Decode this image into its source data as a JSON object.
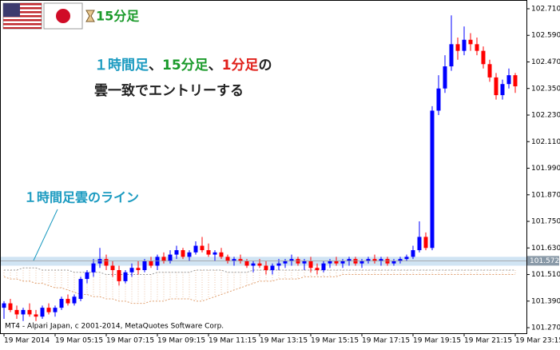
{
  "chart_data": {
    "type": "candlestick",
    "timeframe_label": "15分足",
    "annotation_main": {
      "line1": [
        {
          "text": "１時間足",
          "color": "#1a9ac0"
        },
        {
          "text": "、",
          "color": "#222222"
        },
        {
          "text": "15分足",
          "color": "#1a9a2a"
        },
        {
          "text": "、",
          "color": "#222222"
        },
        {
          "text": "1分足",
          "color": "#e0201a"
        },
        {
          "text": "の",
          "color": "#222222"
        }
      ],
      "line2": "雲一致でエントリーする"
    },
    "annotation_line": {
      "text": "１時間足雲のライン",
      "color": "#1a9ac0"
    },
    "footer": "MT4 - Alpari Japan, c 2001-2014, MetaQuotes Software Corp.",
    "categories": [
      "19 Mar 2014",
      null,
      null,
      null,
      null,
      null,
      null,
      null,
      "19 Mar 05:15",
      null,
      null,
      null,
      null,
      null,
      null,
      null,
      "19 Mar 07:15",
      null,
      null,
      null,
      null,
      null,
      null,
      null,
      "19 Mar 09:15",
      null,
      null,
      null,
      null,
      null,
      null,
      null,
      "19 Mar 11:15",
      null,
      null,
      null,
      null,
      null,
      null,
      null,
      "19 Mar 13:15",
      null,
      null,
      null,
      null,
      null,
      null,
      null,
      "19 Mar 15:15",
      null,
      null,
      null,
      null,
      null,
      null,
      null,
      "19 Mar 17:15",
      null,
      null,
      null,
      null,
      null,
      null,
      null,
      "19 Mar 19:15",
      null,
      null,
      null,
      null,
      null,
      null,
      null,
      "19 Mar 21:15",
      null,
      null,
      null,
      null,
      null,
      null,
      null,
      "19 Mar 23:15"
    ],
    "open": [
      101.36,
      101.38,
      101.35,
      101.33,
      101.35,
      101.33,
      101.32,
      101.36,
      101.34,
      101.36,
      101.4,
      101.38,
      101.4,
      101.49,
      101.52,
      101.56,
      101.58,
      101.55,
      101.53,
      101.48,
      101.52,
      101.54,
      101.53,
      101.57,
      101.55,
      101.59,
      101.57,
      101.6,
      101.62,
      101.59,
      101.61,
      101.64,
      101.62,
      101.6,
      101.61,
      101.59,
      101.57,
      101.58,
      101.57,
      101.55,
      101.56,
      101.55,
      101.53,
      101.55,
      101.56,
      101.57,
      101.58,
      101.56,
      101.57,
      101.54,
      101.53,
      101.56,
      101.57,
      101.56,
      101.57,
      101.58,
      101.56,
      101.57,
      101.58,
      101.57,
      101.58,
      101.56,
      101.57,
      101.58,
      101.59,
      101.62,
      101.68,
      101.63,
      102.25,
      102.35,
      102.45,
      102.55,
      102.52,
      102.57,
      102.55,
      102.52,
      102.46,
      102.4,
      102.32,
      102.37,
      102.41
    ],
    "high": [
      101.39,
      101.4,
      101.37,
      101.36,
      101.38,
      101.35,
      101.37,
      101.38,
      101.37,
      101.41,
      101.42,
      101.42,
      101.5,
      101.53,
      101.58,
      101.63,
      101.6,
      101.57,
      101.55,
      101.53,
      101.56,
      101.57,
      101.58,
      101.59,
      101.6,
      101.61,
      101.62,
      101.64,
      101.63,
      101.62,
      101.66,
      101.68,
      101.65,
      101.62,
      101.63,
      101.6,
      101.59,
      101.6,
      101.58,
      101.57,
      101.58,
      101.57,
      101.56,
      101.58,
      101.58,
      101.6,
      101.59,
      101.58,
      101.59,
      101.56,
      101.57,
      101.58,
      101.59,
      101.58,
      101.59,
      101.59,
      101.58,
      101.59,
      101.6,
      101.59,
      101.59,
      101.58,
      101.59,
      101.6,
      101.64,
      101.75,
      101.7,
      102.27,
      102.41,
      102.5,
      102.68,
      102.58,
      102.63,
      102.6,
      102.58,
      102.54,
      102.48,
      102.42,
      102.39,
      102.44,
      102.42
    ],
    "low": [
      101.31,
      101.34,
      101.31,
      101.3,
      101.32,
      101.3,
      101.31,
      101.33,
      101.32,
      101.35,
      101.37,
      101.37,
      101.39,
      101.47,
      101.5,
      101.54,
      101.53,
      101.5,
      101.46,
      101.47,
      101.5,
      101.51,
      101.52,
      101.54,
      101.53,
      101.56,
      101.56,
      101.58,
      101.58,
      101.57,
      101.6,
      101.61,
      101.59,
      101.57,
      101.58,
      101.56,
      101.55,
      101.56,
      101.54,
      101.52,
      101.54,
      101.51,
      101.51,
      101.53,
      101.54,
      101.55,
      101.55,
      101.53,
      101.52,
      101.51,
      101.52,
      101.54,
      101.55,
      101.54,
      101.55,
      101.55,
      101.54,
      101.56,
      101.56,
      101.55,
      101.55,
      101.55,
      101.56,
      101.57,
      101.58,
      101.61,
      101.62,
      101.62,
      102.23,
      102.33,
      102.43,
      102.48,
      102.5,
      102.52,
      102.5,
      102.44,
      102.38,
      102.3,
      102.3,
      102.35,
      102.33
    ],
    "close": [
      101.38,
      101.35,
      101.33,
      101.35,
      101.33,
      101.32,
      101.36,
      101.34,
      101.36,
      101.4,
      101.38,
      101.41,
      101.49,
      101.52,
      101.56,
      101.58,
      101.55,
      101.53,
      101.48,
      101.52,
      101.54,
      101.53,
      101.57,
      101.55,
      101.59,
      101.57,
      101.6,
      101.62,
      101.59,
      101.61,
      101.64,
      101.62,
      101.6,
      101.61,
      101.59,
      101.57,
      101.58,
      101.57,
      101.55,
      101.56,
      101.55,
      101.53,
      101.55,
      101.56,
      101.57,
      101.58,
      101.56,
      101.57,
      101.54,
      101.53,
      101.56,
      101.57,
      101.56,
      101.57,
      101.58,
      101.56,
      101.57,
      101.58,
      101.57,
      101.58,
      101.56,
      101.57,
      101.58,
      101.59,
      101.62,
      101.68,
      101.63,
      102.25,
      102.35,
      102.45,
      102.55,
      102.52,
      102.57,
      102.55,
      102.52,
      102.46,
      102.4,
      102.32,
      102.37,
      102.41,
      102.36
    ],
    "up_color": "#0000ff",
    "down_color": "#ff0000",
    "cloud_upper": [
      101.53,
      101.53,
      101.53,
      101.54,
      101.54,
      101.54,
      101.53,
      101.53,
      101.53,
      101.53,
      101.53,
      101.52,
      101.52,
      101.52,
      101.52,
      101.52,
      101.51,
      101.51,
      101.51,
      101.51,
      101.51,
      101.51,
      101.51,
      101.51,
      101.52,
      101.52,
      101.52,
      101.52,
      101.52,
      101.52,
      101.53,
      101.53,
      101.53,
      101.53,
      101.53,
      101.52,
      101.52,
      101.52,
      101.52,
      101.53,
      101.53,
      101.53,
      101.53,
      101.53,
      101.53,
      101.53,
      101.53,
      101.53,
      101.53,
      101.53,
      101.53,
      101.53,
      101.53,
      101.53,
      101.53,
      101.53,
      101.53,
      101.53,
      101.53,
      101.53,
      101.53,
      101.53,
      101.53,
      101.53,
      101.53,
      101.53,
      101.53,
      101.53,
      101.53,
      101.53,
      101.53,
      101.53,
      101.53,
      101.53,
      101.53,
      101.53,
      101.53,
      101.53,
      101.53,
      101.53,
      101.53
    ],
    "cloud_lower": [
      101.5,
      101.49,
      101.49,
      101.48,
      101.48,
      101.47,
      101.47,
      101.46,
      101.45,
      101.45,
      101.44,
      101.43,
      101.42,
      101.42,
      101.41,
      101.41,
      101.4,
      101.4,
      101.39,
      101.39,
      101.38,
      101.38,
      101.38,
      101.39,
      101.39,
      101.39,
      101.4,
      101.4,
      101.4,
      101.4,
      101.39,
      101.39,
      101.4,
      101.41,
      101.42,
      101.43,
      101.44,
      101.45,
      101.46,
      101.47,
      101.48,
      101.48,
      101.48,
      101.49,
      101.49,
      101.49,
      101.49,
      101.5,
      101.5,
      101.5,
      101.5,
      101.5,
      101.5,
      101.51,
      101.51,
      101.51,
      101.51,
      101.51,
      101.51,
      101.51,
      101.51,
      101.51,
      101.51,
      101.51,
      101.51,
      101.51,
      101.51,
      101.51,
      101.51,
      101.51,
      101.51,
      101.51,
      101.51,
      101.51,
      101.51,
      101.51,
      101.51,
      101.51,
      101.51,
      101.51,
      101.51
    ],
    "cloud_upper_color": "#9a9a9a",
    "cloud_lower_color": "#e0a070",
    "hourly_cloud_band": [
      101.55,
      101.59
    ],
    "band_color": "#bcd8ee",
    "current_price": 101.572,
    "ylim": [
      101.245,
      102.746
    ],
    "yticks": [
      {
        "value": 101.27,
        "label": "101.270"
      },
      {
        "value": 101.39,
        "label": "101.390"
      },
      {
        "value": 101.51,
        "label": "101.510"
      },
      {
        "value": 101.63,
        "label": "101.630"
      },
      {
        "value": 101.75,
        "label": "101.750"
      },
      {
        "value": 101.87,
        "label": "101.870"
      },
      {
        "value": 101.99,
        "label": "101.990"
      },
      {
        "value": 102.11,
        "label": "102.110"
      },
      {
        "value": 102.23,
        "label": "102.230"
      },
      {
        "value": 102.35,
        "label": "102.350"
      },
      {
        "value": 102.47,
        "label": "102.470"
      },
      {
        "value": 102.59,
        "label": "102.590"
      },
      {
        "value": 102.71,
        "label": "102.710"
      }
    ]
  }
}
